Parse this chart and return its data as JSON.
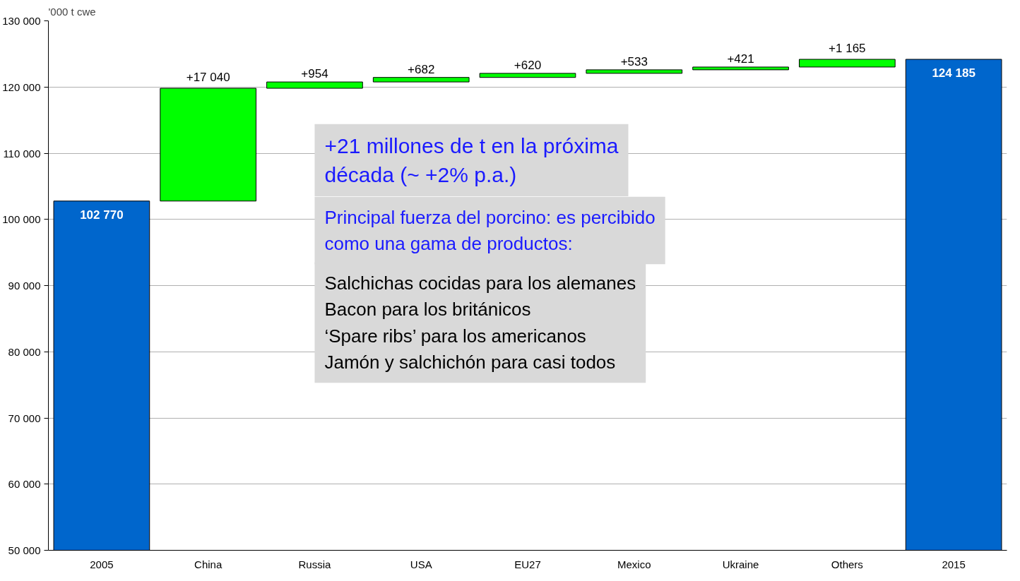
{
  "chart_data": {
    "type": "bar",
    "ylabel": "'000 t cwe",
    "categories": [
      "2005",
      "China",
      "Russia",
      "USA",
      "EU27",
      "Mexico",
      "Ukraine",
      "Others",
      "2015"
    ],
    "values": [
      102770,
      17040,
      954,
      682,
      620,
      533,
      421,
      1165,
      124185
    ],
    "base": [
      null,
      102770,
      119810,
      120764,
      121446,
      122066,
      122599,
      123020,
      null
    ],
    "colors": [
      "#0066cc",
      "#00ff00",
      "#00ff00",
      "#00ff00",
      "#00ff00",
      "#00ff00",
      "#00ff00",
      "#00ff00",
      "#0066cc"
    ],
    "value_labels": [
      "102 770",
      "+17 040",
      "+954",
      "+682",
      "+620",
      "+533",
      "+421",
      "+1 165",
      "124 185"
    ],
    "ylim": [
      50000,
      130000
    ],
    "yticks": [
      {
        "value": 50000,
        "label": "50 000"
      },
      {
        "value": 60000,
        "label": "60 000"
      },
      {
        "value": 70000,
        "label": "70 000"
      },
      {
        "value": 80000,
        "label": "80 000"
      },
      {
        "value": 90000,
        "label": "90 000"
      },
      {
        "value": 100000,
        "label": "100 000"
      },
      {
        "value": 110000,
        "label": "110 000"
      },
      {
        "value": 120000,
        "label": "120 000"
      },
      {
        "value": 130000,
        "label": "130 000"
      }
    ],
    "grid": "y",
    "annotations": [
      "+21 millones de t en la próxima década (~ +2% p.a.)",
      "Principal fuerza del porcino: es percibido como una gama de productos:",
      "Salchichas cocidas para los alemanes",
      "Bacon para los británicos",
      "‘Spare ribs’ para los americanos",
      "Jamón y salchichón para casi todos"
    ]
  }
}
